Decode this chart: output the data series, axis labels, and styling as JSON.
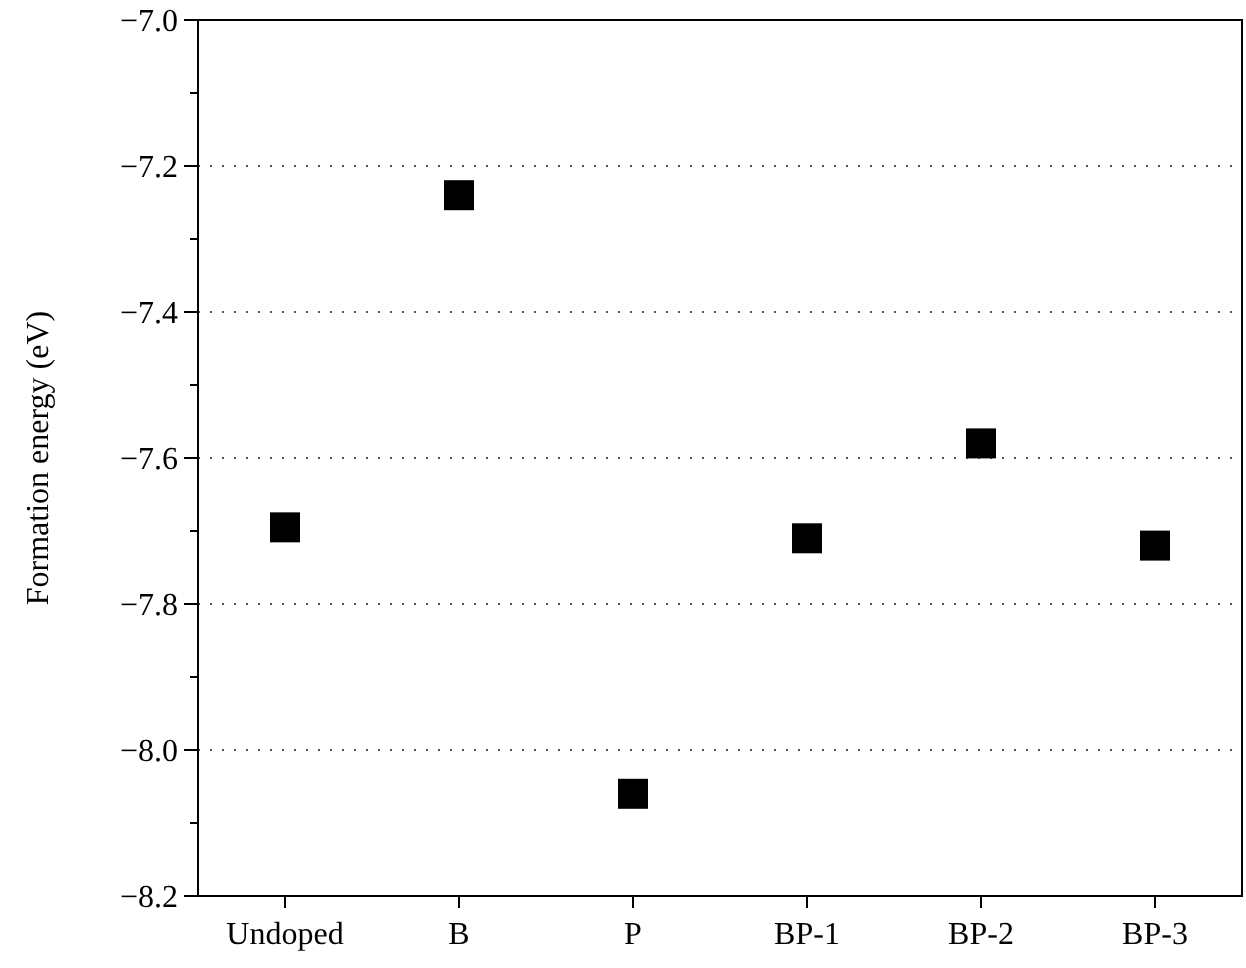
{
  "chart_data": {
    "type": "scatter",
    "ylabel": "Formation energy (eV)",
    "categories": [
      "Undoped",
      "B",
      "P",
      "BP-1",
      "BP-2",
      "BP-3"
    ],
    "series": [
      {
        "color": "#000000",
        "values": [
          -7.695,
          -7.24,
          -8.06,
          -7.71,
          -7.58,
          -7.72
        ]
      }
    ],
    "marker": "square",
    "ylim": [
      -8.2,
      -7.0
    ],
    "yticks": [
      {
        "value": -8.2,
        "label": "−8.2"
      },
      {
        "value": -8.1,
        "label": null
      },
      {
        "value": -8.0,
        "label": "−8.0"
      },
      {
        "value": -7.9,
        "label": null
      },
      {
        "value": -7.8,
        "label": "−7.8"
      },
      {
        "value": -7.7,
        "label": null
      },
      {
        "value": -7.6,
        "label": "−7.6"
      },
      {
        "value": -7.5,
        "label": null
      },
      {
        "value": -7.4,
        "label": "−7.4"
      },
      {
        "value": -7.3,
        "label": null
      },
      {
        "value": -7.2,
        "label": "−7.2"
      },
      {
        "value": -7.1,
        "label": null
      },
      {
        "value": -7.0,
        "label": "−7.0"
      }
    ],
    "grid": "y"
  }
}
